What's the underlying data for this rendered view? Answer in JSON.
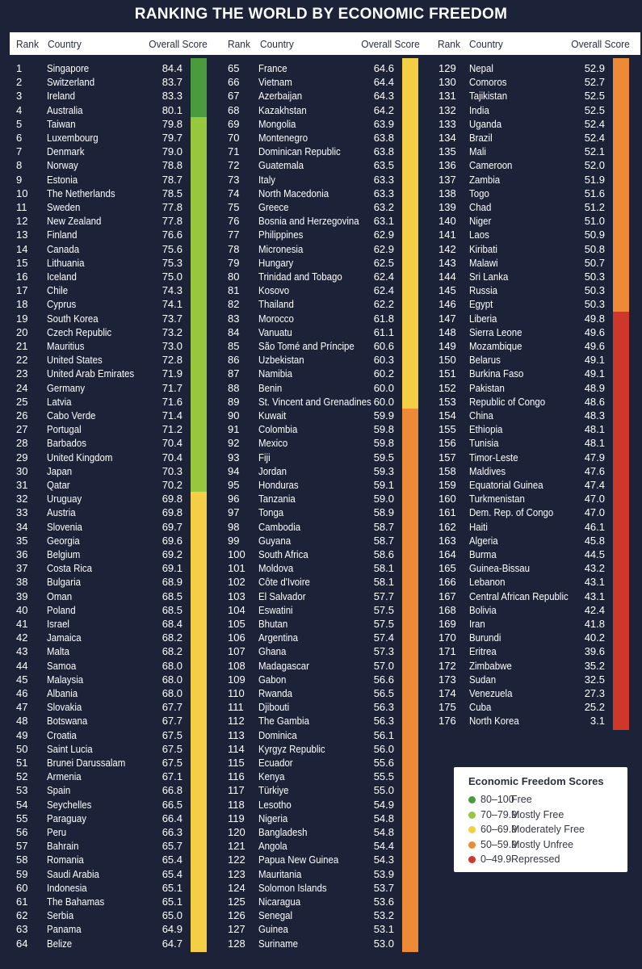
{
  "title": "RANKING THE WORLD BY ECONOMIC FREEDOM",
  "headers": {
    "rank": "Rank",
    "country": "Country",
    "score": "Overall Score"
  },
  "legend": {
    "title": "Economic Freedom Scores",
    "items": [
      {
        "range": "80–100",
        "label": "Free",
        "color": "#4a9a3e"
      },
      {
        "range": "70–79.9",
        "label": "Mostly Free",
        "color": "#97c63f"
      },
      {
        "range": "60–69.9",
        "label": "Moderately Free",
        "color": "#f4cf45"
      },
      {
        "range": "50–59.9",
        "label": "Mostly Unfree",
        "color": "#ec8a36"
      },
      {
        "range": "0–49.9",
        "label": "Repressed",
        "color": "#d0372b"
      }
    ]
  },
  "chart_data": {
    "type": "table",
    "title": "RANKING THE WORLD BY ECONOMIC FREEDOM",
    "columns": [
      "Rank",
      "Country",
      "Overall Score"
    ],
    "rows": [
      [
        1,
        "Singapore",
        "84.4"
      ],
      [
        2,
        "Switzerland",
        "83.7"
      ],
      [
        3,
        "Ireland",
        "83.3"
      ],
      [
        4,
        "Australia",
        "80.1"
      ],
      [
        5,
        "Taiwan",
        "79.8"
      ],
      [
        6,
        "Luxembourg",
        "79.7"
      ],
      [
        7,
        "Denmark",
        "79.0"
      ],
      [
        8,
        "Norway",
        "78.8"
      ],
      [
        9,
        "Estonia",
        "78.7"
      ],
      [
        10,
        "The Netherlands",
        "78.5"
      ],
      [
        11,
        "Sweden",
        "77.8"
      ],
      [
        12,
        "New Zealand",
        "77.8"
      ],
      [
        13,
        "Finland",
        "76.6"
      ],
      [
        14,
        "Canada",
        "75.6"
      ],
      [
        15,
        "Lithuania",
        "75.3"
      ],
      [
        16,
        "Iceland",
        "75.0"
      ],
      [
        17,
        "Chile",
        "74.3"
      ],
      [
        18,
        "Cyprus",
        "74.1"
      ],
      [
        19,
        "South Korea",
        "73.7"
      ],
      [
        20,
        "Czech Republic",
        "73.2"
      ],
      [
        21,
        "Mauritius",
        "73.0"
      ],
      [
        22,
        "United States",
        "72.8"
      ],
      [
        23,
        "United Arab Emirates",
        "71.9"
      ],
      [
        24,
        "Germany",
        "71.7"
      ],
      [
        25,
        "Latvia",
        "71.6"
      ],
      [
        26,
        "Cabo Verde",
        "71.4"
      ],
      [
        27,
        "Portugal",
        "71.2"
      ],
      [
        28,
        "Barbados",
        "70.4"
      ],
      [
        29,
        "United Kingdom",
        "70.4"
      ],
      [
        30,
        "Japan",
        "70.3"
      ],
      [
        31,
        "Qatar",
        "70.2"
      ],
      [
        32,
        "Uruguay",
        "69.8"
      ],
      [
        33,
        "Austria",
        "69.8"
      ],
      [
        34,
        "Slovenia",
        "69.7"
      ],
      [
        35,
        "Georgia",
        "69.6"
      ],
      [
        36,
        "Belgium",
        "69.2"
      ],
      [
        37,
        "Costa Rica",
        "69.1"
      ],
      [
        38,
        "Bulgaria",
        "68.9"
      ],
      [
        39,
        "Oman",
        "68.5"
      ],
      [
        40,
        "Poland",
        "68.5"
      ],
      [
        41,
        "Israel",
        "68.4"
      ],
      [
        42,
        "Jamaica",
        "68.2"
      ],
      [
        43,
        "Malta",
        "68.2"
      ],
      [
        44,
        "Samoa",
        "68.0"
      ],
      [
        45,
        "Malaysia",
        "68.0"
      ],
      [
        46,
        "Albania",
        "68.0"
      ],
      [
        47,
        "Slovakia",
        "67.7"
      ],
      [
        48,
        "Botswana",
        "67.7"
      ],
      [
        49,
        "Croatia",
        "67.5"
      ],
      [
        50,
        "Saint Lucia",
        "67.5"
      ],
      [
        51,
        "Brunei Darussalam",
        "67.5"
      ],
      [
        52,
        "Armenia",
        "67.1"
      ],
      [
        53,
        "Spain",
        "66.8"
      ],
      [
        54,
        "Seychelles",
        "66.5"
      ],
      [
        55,
        "Paraguay",
        "66.4"
      ],
      [
        56,
        "Peru",
        "66.3"
      ],
      [
        57,
        "Bahrain",
        "65.7"
      ],
      [
        58,
        "Romania",
        "65.4"
      ],
      [
        59,
        "Saudi Arabia",
        "65.4"
      ],
      [
        60,
        "Indonesia",
        "65.1"
      ],
      [
        61,
        "The Bahamas",
        "65.1"
      ],
      [
        62,
        "Serbia",
        "65.0"
      ],
      [
        63,
        "Panama",
        "64.9"
      ],
      [
        64,
        "Belize",
        "64.7"
      ],
      [
        65,
        "France",
        "64.6"
      ],
      [
        66,
        "Vietnam",
        "64.4"
      ],
      [
        67,
        "Azerbaijan",
        "64.3"
      ],
      [
        68,
        "Kazakhstan",
        "64.2"
      ],
      [
        69,
        "Mongolia",
        "63.9"
      ],
      [
        70,
        "Montenegro",
        "63.8"
      ],
      [
        71,
        "Dominican Republic",
        "63.8"
      ],
      [
        72,
        "Guatemala",
        "63.5"
      ],
      [
        73,
        "Italy",
        "63.3"
      ],
      [
        74,
        "North Macedonia",
        "63.3"
      ],
      [
        75,
        "Greece",
        "63.2"
      ],
      [
        76,
        "Bosnia and Herzegovina",
        "63.1"
      ],
      [
        77,
        "Philippines",
        "62.9"
      ],
      [
        78,
        "Micronesia",
        "62.9"
      ],
      [
        79,
        "Hungary",
        "62.5"
      ],
      [
        80,
        "Trinidad and Tobago",
        "62.4"
      ],
      [
        81,
        "Kosovo",
        "62.4"
      ],
      [
        82,
        "Thailand",
        "62.2"
      ],
      [
        83,
        "Morocco",
        "61.8"
      ],
      [
        84,
        "Vanuatu",
        "61.1"
      ],
      [
        85,
        "São Tomé and Príncipe",
        "60.6"
      ],
      [
        86,
        "Uzbekistan",
        "60.3"
      ],
      [
        87,
        "Namibia",
        "60.2"
      ],
      [
        88,
        "Benin",
        "60.0"
      ],
      [
        89,
        "St. Vincent and Grenadines",
        "60.0"
      ],
      [
        90,
        "Kuwait",
        "59.9"
      ],
      [
        91,
        "Colombia",
        "59.8"
      ],
      [
        92,
        "Mexico",
        "59.8"
      ],
      [
        93,
        "Fiji",
        "59.5"
      ],
      [
        94,
        "Jordan",
        "59.3"
      ],
      [
        95,
        "Honduras",
        "59.1"
      ],
      [
        96,
        "Tanzania",
        "59.0"
      ],
      [
        97,
        "Tonga",
        "58.9"
      ],
      [
        98,
        "Cambodia",
        "58.7"
      ],
      [
        99,
        "Guyana",
        "58.7"
      ],
      [
        100,
        "South Africa",
        "58.6"
      ],
      [
        101,
        "Moldova",
        "58.1"
      ],
      [
        102,
        "Côte d'Ivoire",
        "58.1"
      ],
      [
        103,
        "El Salvador",
        "57.7"
      ],
      [
        104,
        "Eswatini",
        "57.5"
      ],
      [
        105,
        "Bhutan",
        "57.5"
      ],
      [
        106,
        "Argentina",
        "57.4"
      ],
      [
        107,
        "Ghana",
        "57.3"
      ],
      [
        108,
        "Madagascar",
        "57.0"
      ],
      [
        109,
        "Gabon",
        "56.6"
      ],
      [
        110,
        "Rwanda",
        "56.5"
      ],
      [
        111,
        "Djibouti",
        "56.3"
      ],
      [
        112,
        "The Gambia",
        "56.3"
      ],
      [
        113,
        "Dominica",
        "56.1"
      ],
      [
        114,
        "Kyrgyz Republic",
        "56.0"
      ],
      [
        115,
        "Ecuador",
        "55.6"
      ],
      [
        116,
        "Kenya",
        "55.5"
      ],
      [
        117,
        "Türkiye",
        "55.0"
      ],
      [
        118,
        "Lesotho",
        "54.9"
      ],
      [
        119,
        "Nigeria",
        "54.8"
      ],
      [
        120,
        "Bangladesh",
        "54.8"
      ],
      [
        121,
        "Angola",
        "54.4"
      ],
      [
        122,
        "Papua New Guinea",
        "54.3"
      ],
      [
        123,
        "Mauritania",
        "53.9"
      ],
      [
        124,
        "Solomon Islands",
        "53.7"
      ],
      [
        125,
        "Nicaragua",
        "53.6"
      ],
      [
        126,
        "Senegal",
        "53.2"
      ],
      [
        127,
        "Guinea",
        "53.1"
      ],
      [
        128,
        "Suriname",
        "53.0"
      ],
      [
        129,
        "Nepal",
        "52.9"
      ],
      [
        130,
        "Comoros",
        "52.7"
      ],
      [
        131,
        "Tajikistan",
        "52.5"
      ],
      [
        132,
        "India",
        "52.5"
      ],
      [
        133,
        "Uganda",
        "52.4"
      ],
      [
        134,
        "Brazil",
        "52.4"
      ],
      [
        135,
        "Mali",
        "52.1"
      ],
      [
        136,
        "Cameroon",
        "52.0"
      ],
      [
        137,
        "Zambia",
        "51.9"
      ],
      [
        138,
        "Togo",
        "51.6"
      ],
      [
        139,
        "Chad",
        "51.2"
      ],
      [
        140,
        "Niger",
        "51.0"
      ],
      [
        141,
        "Laos",
        "50.9"
      ],
      [
        142,
        "Kiribati",
        "50.8"
      ],
      [
        143,
        "Malawi",
        "50.7"
      ],
      [
        144,
        "Sri Lanka",
        "50.3"
      ],
      [
        145,
        "Russia",
        "50.3"
      ],
      [
        146,
        "Egypt",
        "50.3"
      ],
      [
        147,
        "Liberia",
        "49.8"
      ],
      [
        148,
        "Sierra Leone",
        "49.6"
      ],
      [
        149,
        "Mozambique",
        "49.6"
      ],
      [
        150,
        "Belarus",
        "49.1"
      ],
      [
        151,
        "Burkina Faso",
        "49.1"
      ],
      [
        152,
        "Pakistan",
        "48.9"
      ],
      [
        153,
        "Republic of Congo",
        "48.6"
      ],
      [
        154,
        "China",
        "48.3"
      ],
      [
        155,
        "Ethiopia",
        "48.1"
      ],
      [
        156,
        "Tunisia",
        "48.1"
      ],
      [
        157,
        "Timor-Leste",
        "47.9"
      ],
      [
        158,
        "Maldives",
        "47.6"
      ],
      [
        159,
        "Equatorial Guinea",
        "47.4"
      ],
      [
        160,
        "Turkmenistan",
        "47.0"
      ],
      [
        161,
        "Dem. Rep. of Congo",
        "47.0"
      ],
      [
        162,
        "Haiti",
        "46.1"
      ],
      [
        163,
        "Algeria",
        "45.8"
      ],
      [
        164,
        "Burma",
        "44.5"
      ],
      [
        165,
        "Guinea-Bissau",
        "43.2"
      ],
      [
        166,
        "Lebanon",
        "43.1"
      ],
      [
        167,
        "Central African Republic",
        "43.1"
      ],
      [
        168,
        "Bolivia",
        "42.4"
      ],
      [
        169,
        "Iran",
        "41.8"
      ],
      [
        170,
        "Burundi",
        "40.2"
      ],
      [
        171,
        "Eritrea",
        "39.6"
      ],
      [
        172,
        "Zimbabwe",
        "35.2"
      ],
      [
        173,
        "Sudan",
        "32.5"
      ],
      [
        174,
        "Venezuela",
        "27.3"
      ],
      [
        175,
        "Cuba",
        "25.2"
      ],
      [
        176,
        "North Korea",
        "3.1"
      ]
    ]
  }
}
